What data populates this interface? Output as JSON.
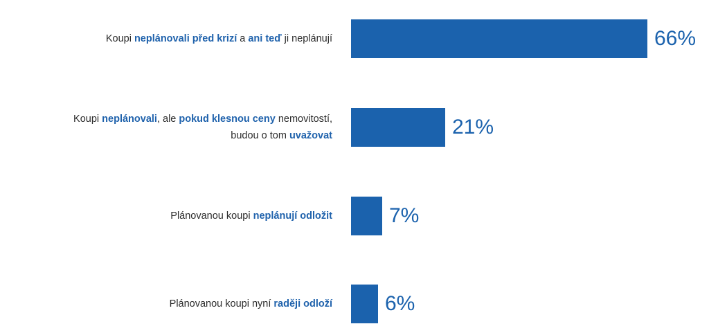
{
  "chart_data": {
    "type": "bar",
    "orientation": "horizontal",
    "color": "#1b62ad",
    "highlight_color": "#1f62ac",
    "categories": [
      {
        "lines": [
          [
            {
              "text": "Koupi ",
              "highlight": false
            },
            {
              "text": "neplánovali před krizí",
              "highlight": true
            },
            {
              "text": " a ",
              "highlight": false
            },
            {
              "text": "ani teď",
              "highlight": true
            },
            {
              "text": " ji neplánují",
              "highlight": false
            }
          ]
        ],
        "value": 66,
        "value_label": "66%"
      },
      {
        "lines": [
          [
            {
              "text": "Koupi ",
              "highlight": false
            },
            {
              "text": "neplánovali",
              "highlight": true
            },
            {
              "text": ", ale ",
              "highlight": false
            },
            {
              "text": "pokud klesnou ceny",
              "highlight": true
            },
            {
              "text": " nemovitostí,",
              "highlight": false
            }
          ],
          [
            {
              "text": "budou o tom ",
              "highlight": false
            },
            {
              "text": "uvažovat",
              "highlight": true
            }
          ]
        ],
        "value": 21,
        "value_label": "21%"
      },
      {
        "lines": [
          [
            {
              "text": "Plánovanou koupi ",
              "highlight": false
            },
            {
              "text": "neplánují odložit",
              "highlight": true
            }
          ]
        ],
        "value": 7,
        "value_label": "7%"
      },
      {
        "lines": [
          [
            {
              "text": "Plánovanou koupi nyní ",
              "highlight": false
            },
            {
              "text": "raději odloží",
              "highlight": true
            }
          ]
        ],
        "value": 6,
        "value_label": "6%"
      }
    ],
    "xlim": [
      0,
      66
    ],
    "grid": false,
    "legend": "none",
    "title": "",
    "xlabel": "",
    "ylabel": ""
  }
}
